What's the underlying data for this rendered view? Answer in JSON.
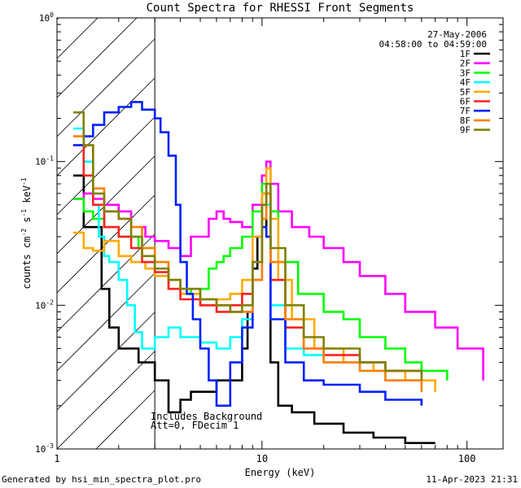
{
  "chart_data": {
    "type": "line",
    "title": "Count Spectra for RHESSI Front Segments",
    "xlabel": "Energy (keV)",
    "ylabel_main": "counts cm",
    "ylabel_sup1": "-2",
    "ylabel_mid": " s",
    "ylabel_sup2": "-1",
    "ylabel_tail": " keV",
    "ylabel_sup3": "-1",
    "x_scale": "log",
    "y_scale": "log",
    "xlim": [
      1,
      150
    ],
    "ylim": [
      0.001,
      1
    ],
    "x_ticks": [
      {
        "value": 1,
        "label": "1"
      },
      {
        "value": 10,
        "label": "10"
      },
      {
        "value": 100,
        "label": "100"
      }
    ],
    "y_ticks": [
      {
        "value": 1,
        "base": "10",
        "exp": "0"
      },
      {
        "value": 0.1,
        "base": "10",
        "exp": "-1"
      },
      {
        "value": 0.01,
        "base": "10",
        "exp": "-2"
      },
      {
        "value": 0.001,
        "base": "10",
        "exp": "-3"
      }
    ],
    "date": "27-May-2006",
    "time_range": "04:58:00 to 04:59:00",
    "annotation_1": "Includes Background",
    "annotation_2": "Att=0, FDecim 1",
    "hatched_region_xmax": 3,
    "legend_position": "top-right",
    "series": [
      {
        "name": "1F",
        "color": "#000000",
        "points": [
          [
            1.2,
            0.08
          ],
          [
            1.35,
            0.035
          ],
          [
            1.5,
            0.035
          ],
          [
            1.65,
            0.013
          ],
          [
            1.8,
            0.007
          ],
          [
            2.0,
            0.005
          ],
          [
            2.2,
            0.005
          ],
          [
            2.5,
            0.004
          ],
          [
            3.0,
            0.003
          ],
          [
            3.5,
            0.0018
          ],
          [
            4.0,
            0.0022
          ],
          [
            4.5,
            0.0025
          ],
          [
            5.0,
            0.0025
          ],
          [
            6.0,
            0.003
          ],
          [
            7.0,
            0.003
          ],
          [
            8.0,
            0.005
          ],
          [
            8.5,
            0.009
          ],
          [
            9.0,
            0.018
          ],
          [
            9.5,
            0.03
          ],
          [
            10.0,
            0.06
          ],
          [
            10.5,
            0.03
          ],
          [
            11.0,
            0.004
          ],
          [
            12.0,
            0.002
          ],
          [
            14.0,
            0.0018
          ],
          [
            18.0,
            0.0015
          ],
          [
            25.0,
            0.0013
          ],
          [
            35.0,
            0.0012
          ],
          [
            50.0,
            0.0011
          ],
          [
            70.0,
            0.0011
          ]
        ]
      },
      {
        "name": "2F",
        "color": "#ff00ff",
        "points": [
          [
            1.2,
            0.055
          ],
          [
            1.35,
            0.06
          ],
          [
            1.5,
            0.055
          ],
          [
            1.7,
            0.05
          ],
          [
            2.0,
            0.045
          ],
          [
            2.3,
            0.035
          ],
          [
            2.7,
            0.03
          ],
          [
            3.0,
            0.028
          ],
          [
            3.5,
            0.025
          ],
          [
            4.0,
            0.022
          ],
          [
            4.5,
            0.03
          ],
          [
            5.0,
            0.03
          ],
          [
            5.5,
            0.04
          ],
          [
            6.0,
            0.045
          ],
          [
            6.5,
            0.04
          ],
          [
            7.0,
            0.038
          ],
          [
            8.0,
            0.035
          ],
          [
            9.0,
            0.05
          ],
          [
            10.0,
            0.08
          ],
          [
            10.5,
            0.1
          ],
          [
            11.0,
            0.07
          ],
          [
            12.0,
            0.045
          ],
          [
            14.0,
            0.035
          ],
          [
            17.0,
            0.03
          ],
          [
            20.0,
            0.025
          ],
          [
            25.0,
            0.02
          ],
          [
            30.0,
            0.016
          ],
          [
            40.0,
            0.012
          ],
          [
            50.0,
            0.009
          ],
          [
            70.0,
            0.007
          ],
          [
            90.0,
            0.005
          ],
          [
            120.0,
            0.003
          ]
        ]
      },
      {
        "name": "3F",
        "color": "#00ff00",
        "points": [
          [
            1.2,
            0.055
          ],
          [
            1.35,
            0.045
          ],
          [
            1.5,
            0.04
          ],
          [
            1.7,
            0.035
          ],
          [
            2.0,
            0.03
          ],
          [
            2.5,
            0.025
          ],
          [
            3.0,
            0.02
          ],
          [
            3.5,
            0.015
          ],
          [
            4.0,
            0.013
          ],
          [
            4.5,
            0.012
          ],
          [
            5.0,
            0.013
          ],
          [
            5.5,
            0.018
          ],
          [
            6.0,
            0.02
          ],
          [
            6.5,
            0.022
          ],
          [
            7.0,
            0.025
          ],
          [
            8.0,
            0.03
          ],
          [
            9.0,
            0.045
          ],
          [
            10.0,
            0.07
          ],
          [
            10.5,
            0.09
          ],
          [
            11.0,
            0.045
          ],
          [
            12.0,
            0.02
          ],
          [
            15.0,
            0.012
          ],
          [
            20.0,
            0.009
          ],
          [
            25.0,
            0.008
          ],
          [
            30.0,
            0.006
          ],
          [
            40.0,
            0.005
          ],
          [
            50.0,
            0.004
          ],
          [
            60.0,
            0.0035
          ],
          [
            80.0,
            0.003
          ]
        ]
      },
      {
        "name": "4F",
        "color": "#00ffff",
        "points": [
          [
            1.2,
            0.17
          ],
          [
            1.35,
            0.1
          ],
          [
            1.5,
            0.05
          ],
          [
            1.6,
            0.03
          ],
          [
            1.7,
            0.022
          ],
          [
            1.8,
            0.02
          ],
          [
            2.0,
            0.015
          ],
          [
            2.2,
            0.01
          ],
          [
            2.4,
            0.0065
          ],
          [
            2.6,
            0.005
          ],
          [
            3.0,
            0.006
          ],
          [
            3.5,
            0.007
          ],
          [
            4.0,
            0.006
          ],
          [
            5.0,
            0.0055
          ],
          [
            6.0,
            0.005
          ],
          [
            7.0,
            0.006
          ],
          [
            8.0,
            0.008
          ],
          [
            9.0,
            0.02
          ],
          [
            10.0,
            0.05
          ],
          [
            10.5,
            0.05
          ],
          [
            11.0,
            0.01
          ],
          [
            13.0,
            0.005
          ],
          [
            16.0,
            0.0045
          ],
          [
            20.0,
            0.004
          ],
          [
            30.0,
            0.0035
          ],
          [
            40.0,
            0.003
          ],
          [
            60.0,
            0.0025
          ]
        ]
      },
      {
        "name": "5F",
        "color": "#ffaa00",
        "points": [
          [
            1.2,
            0.032
          ],
          [
            1.35,
            0.025
          ],
          [
            1.5,
            0.024
          ],
          [
            1.7,
            0.028
          ],
          [
            2.0,
            0.022
          ],
          [
            2.3,
            0.02
          ],
          [
            2.7,
            0.018
          ],
          [
            3.0,
            0.016
          ],
          [
            3.5,
            0.013
          ],
          [
            4.0,
            0.012
          ],
          [
            5.0,
            0.01
          ],
          [
            6.0,
            0.011
          ],
          [
            7.0,
            0.012
          ],
          [
            8.0,
            0.015
          ],
          [
            9.0,
            0.03
          ],
          [
            10.0,
            0.06
          ],
          [
            10.5,
            0.09
          ],
          [
            11.0,
            0.04
          ],
          [
            12.0,
            0.015
          ],
          [
            14.0,
            0.008
          ],
          [
            18.0,
            0.005
          ],
          [
            25.0,
            0.004
          ],
          [
            35.0,
            0.0035
          ],
          [
            50.0,
            0.003
          ],
          [
            70.0,
            0.0025
          ]
        ]
      },
      {
        "name": "6F",
        "color": "#ff2020",
        "points": [
          [
            1.2,
            0.13
          ],
          [
            1.35,
            0.08
          ],
          [
            1.5,
            0.05
          ],
          [
            1.7,
            0.035
          ],
          [
            2.0,
            0.03
          ],
          [
            2.3,
            0.025
          ],
          [
            2.6,
            0.02
          ],
          [
            3.0,
            0.017
          ],
          [
            3.5,
            0.013
          ],
          [
            4.0,
            0.011
          ],
          [
            5.0,
            0.01
          ],
          [
            6.0,
            0.009
          ],
          [
            7.0,
            0.01
          ],
          [
            8.0,
            0.012
          ],
          [
            9.0,
            0.02
          ],
          [
            10.0,
            0.05
          ],
          [
            10.5,
            0.06
          ],
          [
            11.0,
            0.015
          ],
          [
            13.0,
            0.007
          ],
          [
            16.0,
            0.005
          ],
          [
            20.0,
            0.0045
          ],
          [
            30.0,
            0.004
          ],
          [
            40.0,
            0.0035
          ],
          [
            60.0,
            0.003
          ]
        ]
      },
      {
        "name": "7F",
        "color": "#0020ff",
        "points": [
          [
            1.2,
            0.13
          ],
          [
            1.35,
            0.15
          ],
          [
            1.5,
            0.18
          ],
          [
            1.7,
            0.22
          ],
          [
            2.0,
            0.24
          ],
          [
            2.3,
            0.26
          ],
          [
            2.6,
            0.23
          ],
          [
            3.0,
            0.2
          ],
          [
            3.2,
            0.16
          ],
          [
            3.5,
            0.11
          ],
          [
            3.8,
            0.05
          ],
          [
            4.0,
            0.02
          ],
          [
            4.3,
            0.012
          ],
          [
            4.6,
            0.008
          ],
          [
            5.0,
            0.005
          ],
          [
            5.5,
            0.003
          ],
          [
            6.0,
            0.002
          ],
          [
            6.5,
            0.002
          ],
          [
            7.0,
            0.004
          ],
          [
            8.0,
            0.007
          ],
          [
            9.0,
            0.015
          ],
          [
            10.0,
            0.035
          ],
          [
            10.5,
            0.03
          ],
          [
            11.0,
            0.008
          ],
          [
            13.0,
            0.004
          ],
          [
            16.0,
            0.003
          ],
          [
            20.0,
            0.0028
          ],
          [
            30.0,
            0.0025
          ],
          [
            40.0,
            0.0022
          ],
          [
            60.0,
            0.002
          ]
        ]
      },
      {
        "name": "8F",
        "color": "#ff8000",
        "points": [
          [
            1.2,
            0.15
          ],
          [
            1.35,
            0.13
          ],
          [
            1.5,
            0.065
          ],
          [
            1.7,
            0.045
          ],
          [
            2.0,
            0.04
          ],
          [
            2.3,
            0.035
          ],
          [
            2.6,
            0.025
          ],
          [
            3.0,
            0.02
          ],
          [
            3.5,
            0.015
          ],
          [
            4.0,
            0.013
          ],
          [
            5.0,
            0.011
          ],
          [
            6.0,
            0.01
          ],
          [
            7.0,
            0.009
          ],
          [
            8.0,
            0.009
          ],
          [
            9.0,
            0.015
          ],
          [
            10.0,
            0.04
          ],
          [
            10.5,
            0.06
          ],
          [
            11.0,
            0.02
          ],
          [
            13.0,
            0.008
          ],
          [
            16.0,
            0.005
          ],
          [
            20.0,
            0.004
          ],
          [
            30.0,
            0.0035
          ],
          [
            40.0,
            0.003
          ],
          [
            60.0,
            0.0025
          ]
        ]
      },
      {
        "name": "9F",
        "color": "#808000",
        "points": [
          [
            1.2,
            0.22
          ],
          [
            1.35,
            0.13
          ],
          [
            1.5,
            0.06
          ],
          [
            1.7,
            0.045
          ],
          [
            2.0,
            0.04
          ],
          [
            2.3,
            0.03
          ],
          [
            2.6,
            0.022
          ],
          [
            3.0,
            0.018
          ],
          [
            3.5,
            0.015
          ],
          [
            4.0,
            0.013
          ],
          [
            5.0,
            0.011
          ],
          [
            6.0,
            0.01
          ],
          [
            7.0,
            0.009
          ],
          [
            8.0,
            0.01
          ],
          [
            9.0,
            0.02
          ],
          [
            10.0,
            0.05
          ],
          [
            10.5,
            0.07
          ],
          [
            11.0,
            0.025
          ],
          [
            13.0,
            0.01
          ],
          [
            16.0,
            0.006
          ],
          [
            20.0,
            0.005
          ],
          [
            30.0,
            0.004
          ],
          [
            40.0,
            0.0035
          ],
          [
            60.0,
            0.003
          ]
        ]
      }
    ]
  },
  "footer": {
    "left": "Generated by hsi_min_spectra_plot.pro",
    "right": "11-Apr-2023 21:31"
  }
}
